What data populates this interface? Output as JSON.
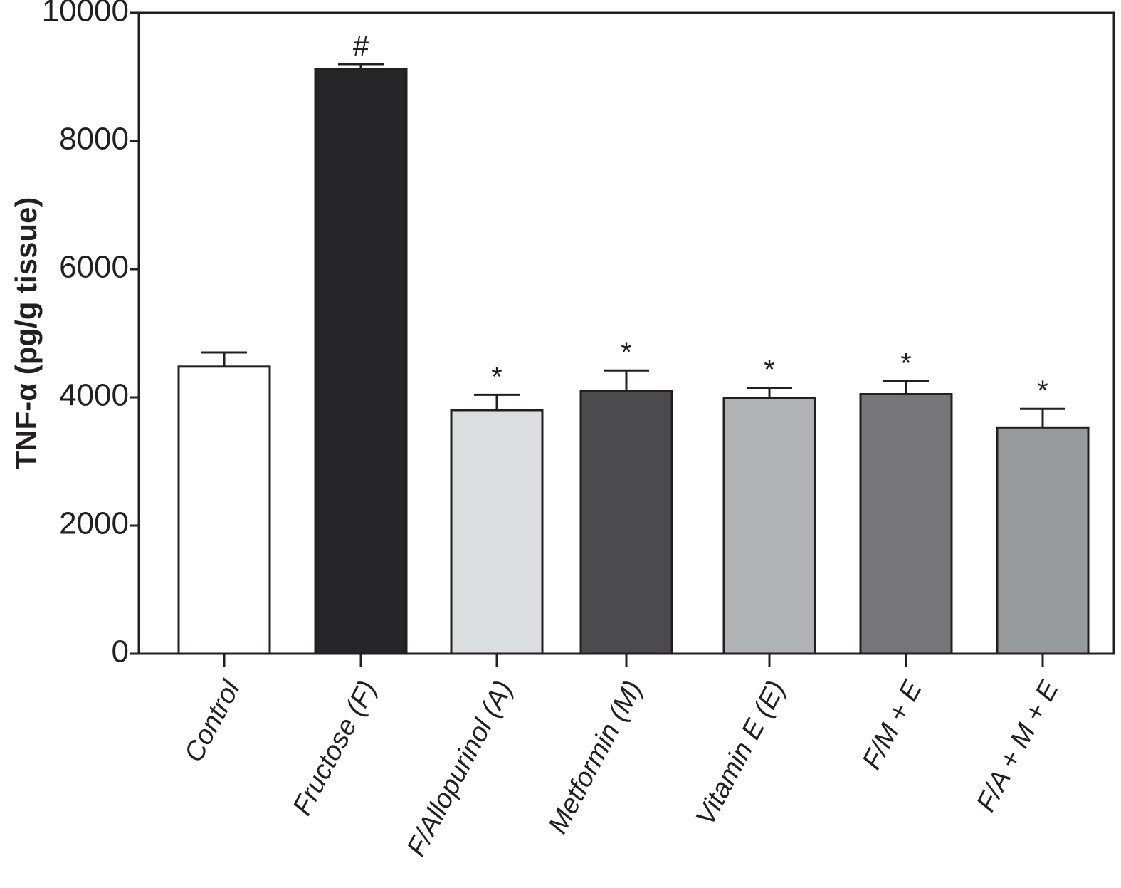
{
  "chart_data": {
    "type": "bar",
    "y_label": "TNF-α (pg/g tissue)",
    "categories": [
      "Control",
      "Fructose (F)",
      "F/Allopurinol (A)",
      "Metformin (M)",
      "Vitamin E (E)",
      "F/M + E",
      "F/A + M + E"
    ],
    "values": [
      4480,
      9120,
      3800,
      4100,
      3990,
      4050,
      3530
    ],
    "errors": [
      220,
      80,
      240,
      320,
      160,
      200,
      290
    ],
    "annotations": [
      null,
      "#",
      "*",
      "*",
      "*",
      "*",
      "*"
    ],
    "colors": [
      "#ffffff",
      "#262527",
      "#dcddde",
      "#4b4b4d",
      "#b1b2b3",
      "#767679",
      "#999a9c"
    ],
    "ylim": [
      0,
      10000
    ],
    "yticks": [
      0,
      2000,
      4000,
      6000,
      8000,
      10000
    ]
  }
}
